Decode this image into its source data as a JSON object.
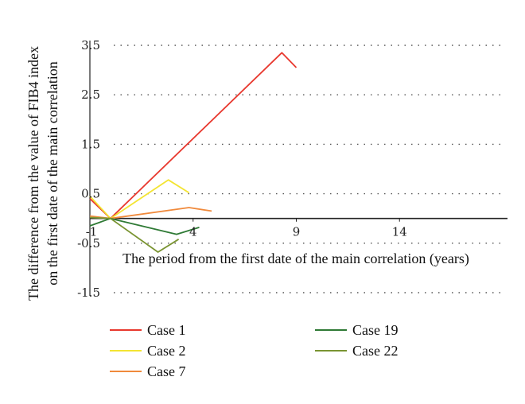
{
  "chart_data": {
    "type": "line",
    "xlabel": "The period from the first date of the main correlation (years)",
    "ylabel": [
      "The difference from the value of FIB4 index",
      "on the first date of the main correlation"
    ],
    "xlim": [
      -1,
      19
    ],
    "ylim": [
      -1.5,
      3.5
    ],
    "xticks": [
      -1,
      4,
      9,
      14
    ],
    "xtick_labels": [
      "-1",
      "4",
      "9",
      "14"
    ],
    "yticks": [
      3.5,
      2.5,
      1.5,
      0.5,
      -0.5,
      -1.5
    ],
    "ytick_labels": [
      "3.5",
      "2.5",
      "1.5",
      "0.5",
      "-0.5",
      "-1.5"
    ],
    "grid": "horizontal dotted",
    "legend_position": "bottom",
    "series": [
      {
        "name": "Case 1",
        "color": "#e8382e",
        "points": [
          [
            -1,
            0.4
          ],
          [
            0,
            0
          ],
          [
            8.3,
            3.35
          ],
          [
            9,
            3.05
          ]
        ]
      },
      {
        "name": "Case 2",
        "color": "#f3e432",
        "points": [
          [
            -1,
            0.45
          ],
          [
            0,
            0
          ],
          [
            2.8,
            0.78
          ],
          [
            3.8,
            0.52
          ]
        ]
      },
      {
        "name": "Case 7",
        "color": "#f08a3c",
        "points": [
          [
            -1,
            0.05
          ],
          [
            0,
            0
          ],
          [
            3.8,
            0.22
          ],
          [
            4.9,
            0.15
          ]
        ]
      },
      {
        "name": "Case 19",
        "color": "#2f7a35",
        "points": [
          [
            -1,
            -0.15
          ],
          [
            0,
            0
          ],
          [
            3.2,
            -0.32
          ],
          [
            4.3,
            -0.18
          ]
        ]
      },
      {
        "name": "Case 22",
        "color": "#7a9432",
        "points": [
          [
            -1,
            0.02
          ],
          [
            0,
            0
          ],
          [
            2.3,
            -0.68
          ],
          [
            3.3,
            -0.42
          ]
        ]
      }
    ]
  }
}
